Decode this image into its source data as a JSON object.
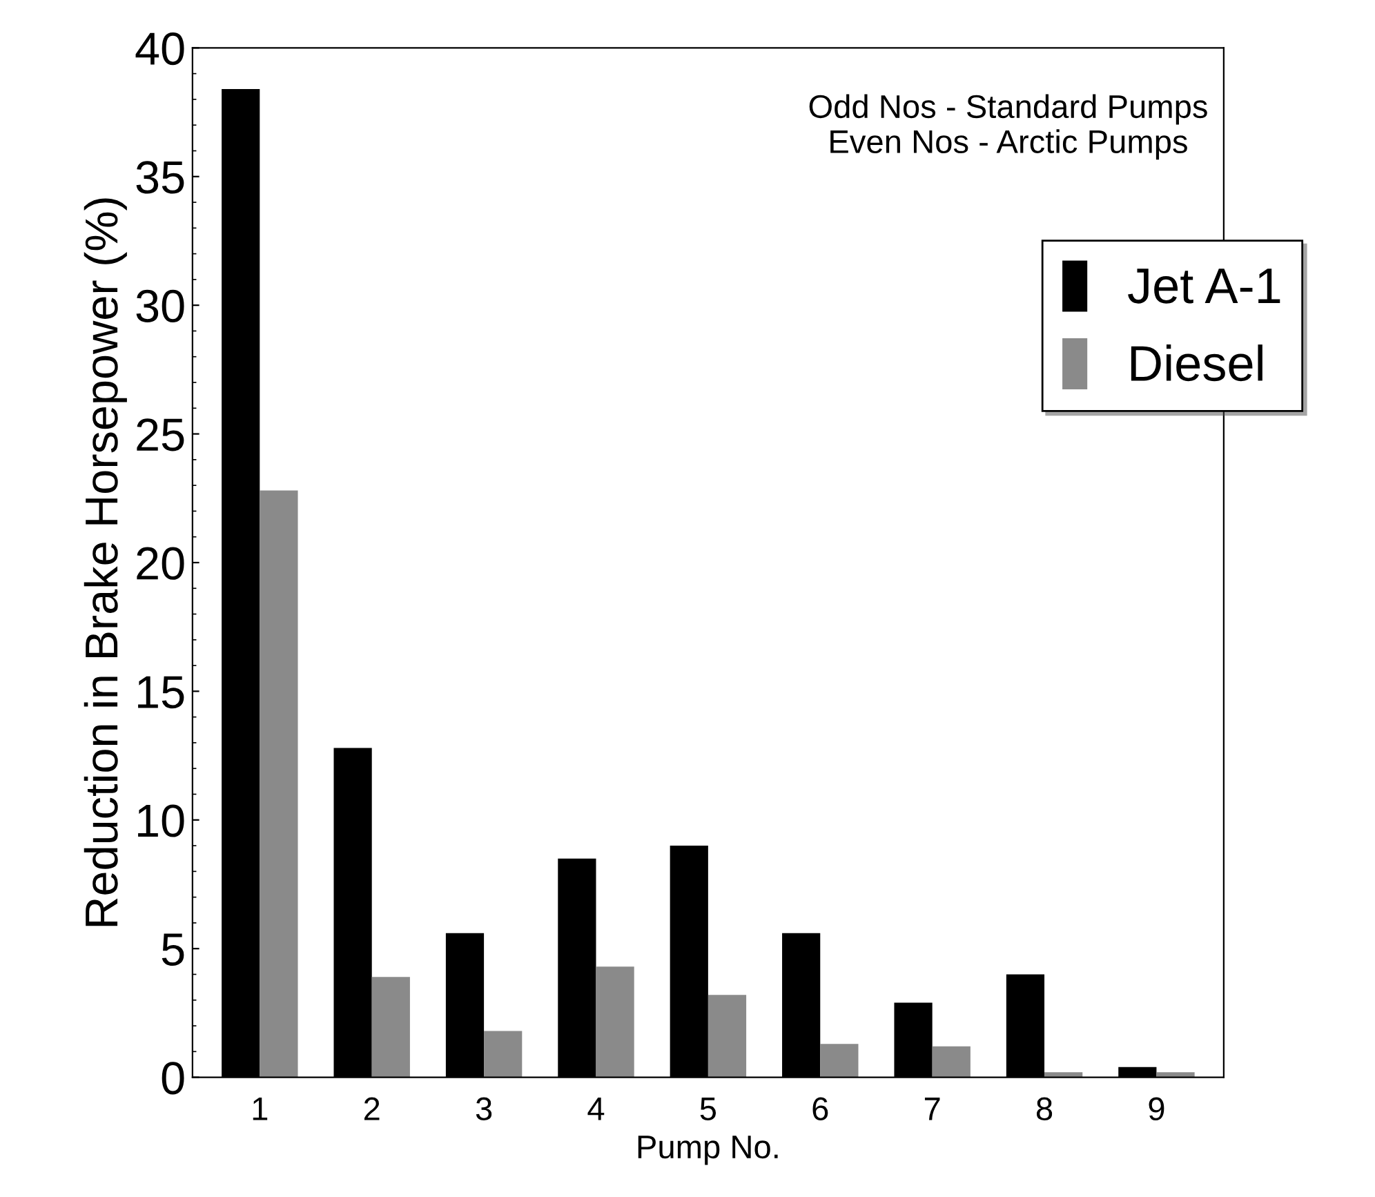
{
  "chart_data": {
    "type": "bar",
    "xlabel": "Pump No.",
    "ylabel": "Reduction in Brake Horsepower (%)",
    "categories": [
      "1",
      "2",
      "3",
      "4",
      "5",
      "6",
      "7",
      "8",
      "9"
    ],
    "series": [
      {
        "name": "Jet A-1",
        "color": "#000000",
        "values": [
          38.4,
          12.8,
          5.6,
          8.5,
          9.0,
          5.6,
          2.9,
          4.0,
          0.4
        ]
      },
      {
        "name": "Diesel",
        "color": "#8a8a8a",
        "values": [
          22.8,
          3.9,
          1.8,
          4.3,
          3.2,
          1.3,
          1.2,
          0.2,
          0.2
        ]
      }
    ],
    "ylim": [
      0,
      40
    ],
    "yticks": [
      0,
      5,
      10,
      15,
      20,
      25,
      30,
      35,
      40
    ],
    "annotations": [
      "Odd Nos - Standard Pumps\nEven Nos - Arctic Pumps"
    ],
    "legend": "right",
    "grid": false
  }
}
